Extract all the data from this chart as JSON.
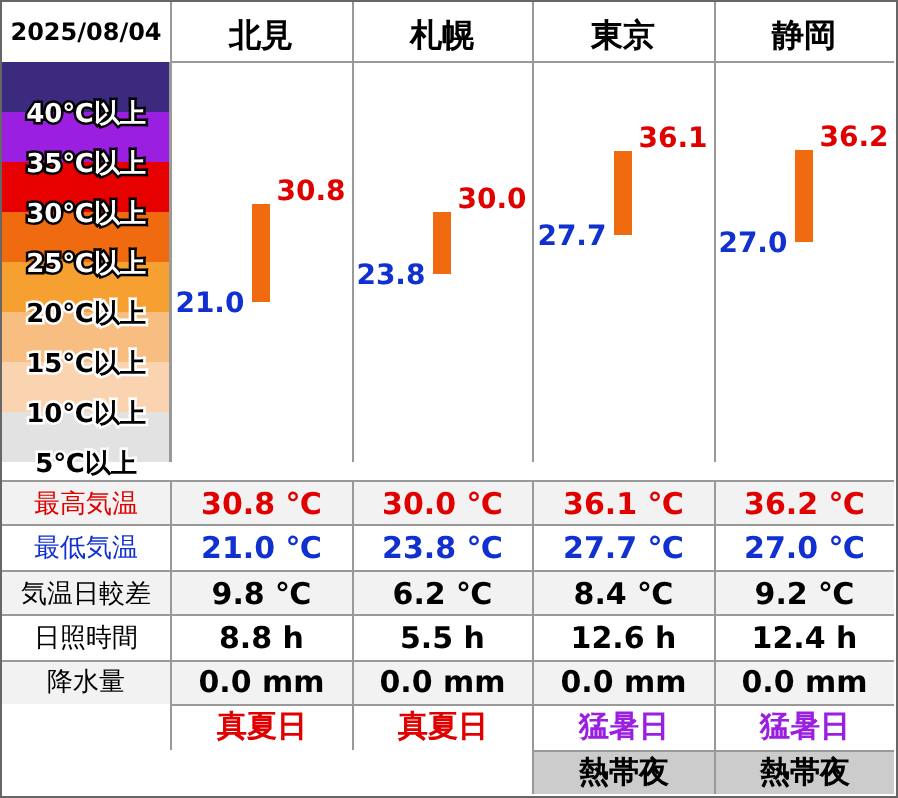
{
  "chart_data": {
    "type": "bar",
    "title": "2025/08/04",
    "categories": [
      "北見",
      "札幌",
      "東京",
      "静岡"
    ],
    "base": [
      21.0,
      23.8,
      27.7,
      27.0
    ],
    "values": [
      9.8,
      6.2,
      8.4,
      9.2
    ],
    "color": "#f06a10",
    "ylim": [
      5,
      45
    ],
    "yticks": [
      {
        "value": 40,
        "label": "40℃以上"
      },
      {
        "value": 35,
        "label": "35℃以上"
      },
      {
        "value": 30,
        "label": "30℃以上"
      },
      {
        "value": 25,
        "label": "25℃以上"
      },
      {
        "value": 20,
        "label": "20℃以上"
      },
      {
        "value": 15,
        "label": "15℃以上"
      },
      {
        "value": 10,
        "label": "10℃以上"
      },
      {
        "value": 5,
        "label": "5℃以上"
      }
    ],
    "annotations": [
      {
        "text": "30.8",
        "x": "北見",
        "y": 30.8
      },
      {
        "text": "21.0",
        "x": "北見",
        "y": 21.0
      },
      {
        "text": "30.0",
        "x": "札幌",
        "y": 30.0
      },
      {
        "text": "23.8",
        "x": "札幌",
        "y": 23.8
      },
      {
        "text": "36.1",
        "x": "東京",
        "y": 36.1
      },
      {
        "text": "27.7",
        "x": "東京",
        "y": 27.7
      },
      {
        "text": "36.2",
        "x": "静岡",
        "y": 36.2
      },
      {
        "text": "27.0",
        "x": "静岡",
        "y": 27.0
      },
      "最高気温",
      "30.8 ℃",
      "30.0 ℃",
      "36.1 ℃",
      "36.2 ℃",
      "最低気温",
      "21.0 ℃",
      "23.8 ℃",
      "27.7 ℃",
      "27.0 ℃",
      "気温日較差",
      "9.8 ℃",
      "6.2 ℃",
      "8.4 ℃",
      "9.2 ℃",
      "日照時間",
      "8.8 h",
      "5.5 h",
      "12.6 h",
      "12.4 h",
      "降水量",
      "0.0 mm",
      "0.0 mm",
      "0.0 mm",
      "0.0 mm",
      "真夏日",
      "真夏日",
      "猛暑日",
      "猛暑日",
      "熱帯夜",
      "熱帯夜"
    ]
  }
}
